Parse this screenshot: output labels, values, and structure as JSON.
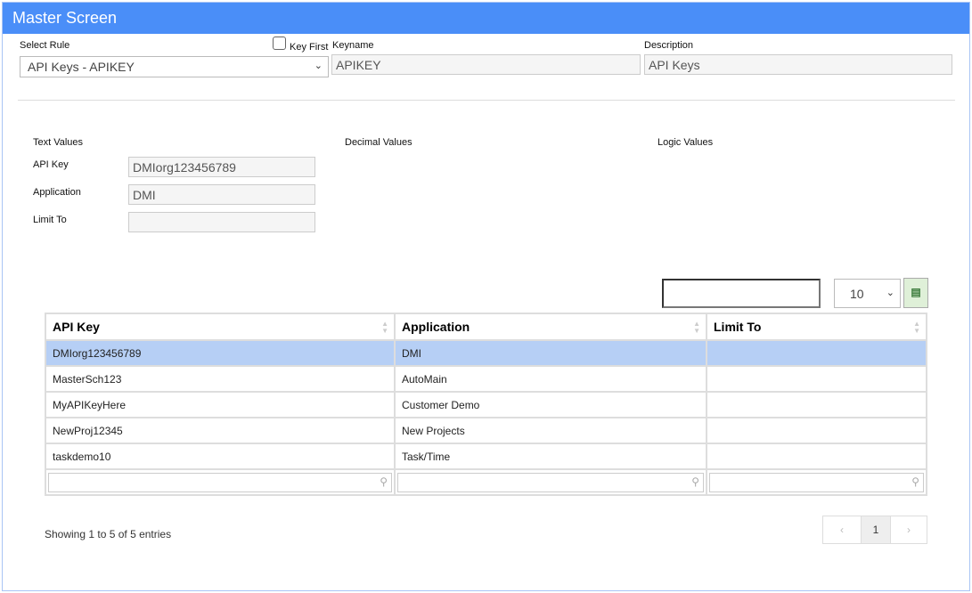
{
  "title": "Master Screen",
  "form": {
    "select_rule_label": "Select Rule",
    "select_rule_value": "API Keys - APIKEY",
    "key_first_label": "Key First",
    "key_first_checked": false,
    "keyname_label": "Keyname",
    "keyname_value": "APIKEY",
    "description_label": "Description",
    "description_value": "API Keys"
  },
  "sections": {
    "text": "Text Values",
    "decimal": "Decimal Values",
    "logic": "Logic Values"
  },
  "fields": [
    {
      "label": "API Key",
      "value": "DMIorg123456789"
    },
    {
      "label": "Application",
      "value": "DMI"
    },
    {
      "label": "Limit To",
      "value": ""
    }
  ],
  "table": {
    "search_value": "",
    "page_size": "10",
    "export_icon": "excel-icon",
    "columns": [
      "API Key",
      "Application",
      "Limit To"
    ],
    "rows": [
      [
        "DMIorg123456789",
        "DMI",
        ""
      ],
      [
        "MasterSch123",
        "AutoMain",
        ""
      ],
      [
        "MyAPIKeyHere",
        "Customer Demo",
        ""
      ],
      [
        "NewProj12345",
        "New Projects",
        ""
      ],
      [
        "taskdemo10",
        "Task/Time",
        ""
      ]
    ],
    "info": "Showing 1 to 5 of 5 entries",
    "current_page": "1",
    "prev": "‹",
    "next": "›"
  },
  "colors": {
    "header": "#4a8ef8",
    "selected_row": "#b6cff5"
  }
}
